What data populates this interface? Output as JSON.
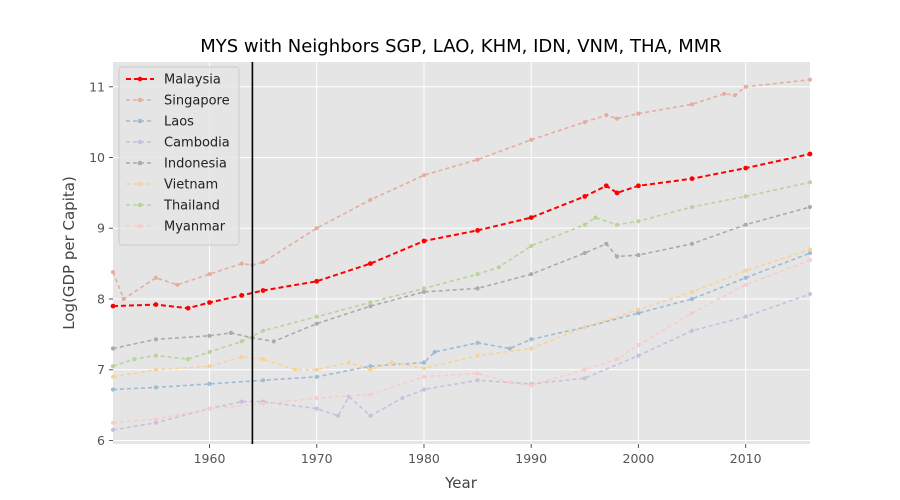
{
  "chart_data": {
    "type": "line",
    "title": "MYS with Neighbors SGP, LAO, KHM, IDN, VNM, THA, MMR",
    "xlabel": "Year",
    "ylabel": "Log(GDP per Capita)",
    "xlim": [
      1951,
      2016
    ],
    "ylim": [
      5.95,
      11.35
    ],
    "xticks": [
      1960,
      1970,
      1980,
      1990,
      2000,
      2010
    ],
    "yticks": [
      6,
      7,
      8,
      9,
      10,
      11
    ],
    "grid": true,
    "legend_position": "top-left",
    "reference_line": {
      "orientation": "vertical",
      "x": 1964,
      "color": "#000000"
    },
    "series": [
      {
        "name": "Malaysia",
        "color": "#ff0000",
        "emphasis": true,
        "points": [
          [
            1951,
            7.9
          ],
          [
            1955,
            7.92
          ],
          [
            1958,
            7.87
          ],
          [
            1960,
            7.95
          ],
          [
            1963,
            8.05
          ],
          [
            1965,
            8.12
          ],
          [
            1970,
            8.25
          ],
          [
            1975,
            8.5
          ],
          [
            1980,
            8.82
          ],
          [
            1985,
            8.97
          ],
          [
            1990,
            9.15
          ],
          [
            1995,
            9.45
          ],
          [
            1997,
            9.6
          ],
          [
            1998,
            9.5
          ],
          [
            2000,
            9.6
          ],
          [
            2005,
            9.7
          ],
          [
            2010,
            9.85
          ],
          [
            2016,
            10.05
          ]
        ]
      },
      {
        "name": "Singapore",
        "color": "#e5ad9d",
        "emphasis": false,
        "points": [
          [
            1951,
            8.38
          ],
          [
            1952,
            8.0
          ],
          [
            1955,
            8.3
          ],
          [
            1957,
            8.2
          ],
          [
            1960,
            8.35
          ],
          [
            1963,
            8.5
          ],
          [
            1964,
            8.48
          ],
          [
            1965,
            8.52
          ],
          [
            1970,
            9.0
          ],
          [
            1975,
            9.4
          ],
          [
            1980,
            9.75
          ],
          [
            1985,
            9.97
          ],
          [
            1990,
            10.25
          ],
          [
            1995,
            10.5
          ],
          [
            1997,
            10.6
          ],
          [
            1998,
            10.55
          ],
          [
            2000,
            10.62
          ],
          [
            2005,
            10.75
          ],
          [
            2008,
            10.9
          ],
          [
            2009,
            10.88
          ],
          [
            2010,
            11.0
          ],
          [
            2016,
            11.1
          ]
        ]
      },
      {
        "name": "Laos",
        "color": "#9dbbd3",
        "emphasis": false,
        "points": [
          [
            1951,
            6.72
          ],
          [
            1955,
            6.75
          ],
          [
            1960,
            6.8
          ],
          [
            1965,
            6.85
          ],
          [
            1970,
            6.9
          ],
          [
            1975,
            7.05
          ],
          [
            1980,
            7.1
          ],
          [
            1981,
            7.25
          ],
          [
            1985,
            7.38
          ],
          [
            1988,
            7.3
          ],
          [
            1990,
            7.43
          ],
          [
            1995,
            7.6
          ],
          [
            2000,
            7.8
          ],
          [
            2005,
            8.0
          ],
          [
            2010,
            8.3
          ],
          [
            2016,
            8.65
          ]
        ]
      },
      {
        "name": "Cambodia",
        "color": "#c8c0df",
        "emphasis": false,
        "points": [
          [
            1951,
            6.15
          ],
          [
            1955,
            6.25
          ],
          [
            1960,
            6.45
          ],
          [
            1963,
            6.55
          ],
          [
            1965,
            6.55
          ],
          [
            1970,
            6.45
          ],
          [
            1972,
            6.35
          ],
          [
            1973,
            6.62
          ],
          [
            1975,
            6.35
          ],
          [
            1978,
            6.6
          ],
          [
            1980,
            6.72
          ],
          [
            1985,
            6.85
          ],
          [
            1990,
            6.8
          ],
          [
            1995,
            6.88
          ],
          [
            2000,
            7.2
          ],
          [
            2005,
            7.55
          ],
          [
            2010,
            7.75
          ],
          [
            2016,
            8.07
          ]
        ]
      },
      {
        "name": "Indonesia",
        "color": "#aaaaaa",
        "emphasis": false,
        "points": [
          [
            1951,
            7.3
          ],
          [
            1955,
            7.43
          ],
          [
            1960,
            7.48
          ],
          [
            1962,
            7.52
          ],
          [
            1964,
            7.45
          ],
          [
            1966,
            7.4
          ],
          [
            1970,
            7.65
          ],
          [
            1975,
            7.9
          ],
          [
            1980,
            8.1
          ],
          [
            1985,
            8.15
          ],
          [
            1990,
            8.35
          ],
          [
            1995,
            8.65
          ],
          [
            1997,
            8.78
          ],
          [
            1998,
            8.6
          ],
          [
            2000,
            8.62
          ],
          [
            2005,
            8.78
          ],
          [
            2010,
            9.05
          ],
          [
            2016,
            9.3
          ]
        ]
      },
      {
        "name": "Vietnam",
        "color": "#f5d49a",
        "emphasis": false,
        "points": [
          [
            1951,
            6.9
          ],
          [
            1955,
            7.0
          ],
          [
            1960,
            7.05
          ],
          [
            1963,
            7.18
          ],
          [
            1965,
            7.15
          ],
          [
            1968,
            7.0
          ],
          [
            1970,
            7.0
          ],
          [
            1973,
            7.1
          ],
          [
            1975,
            7.0
          ],
          [
            1977,
            7.1
          ],
          [
            1980,
            7.02
          ],
          [
            1985,
            7.2
          ],
          [
            1990,
            7.3
          ],
          [
            1995,
            7.6
          ],
          [
            2000,
            7.85
          ],
          [
            2005,
            8.1
          ],
          [
            2010,
            8.4
          ],
          [
            2016,
            8.7
          ]
        ]
      },
      {
        "name": "Thailand",
        "color": "#b9d39a",
        "emphasis": false,
        "points": [
          [
            1951,
            7.05
          ],
          [
            1953,
            7.15
          ],
          [
            1955,
            7.2
          ],
          [
            1958,
            7.15
          ],
          [
            1960,
            7.25
          ],
          [
            1963,
            7.4
          ],
          [
            1965,
            7.55
          ],
          [
            1970,
            7.75
          ],
          [
            1975,
            7.95
          ],
          [
            1980,
            8.15
          ],
          [
            1985,
            8.35
          ],
          [
            1987,
            8.45
          ],
          [
            1990,
            8.75
          ],
          [
            1995,
            9.05
          ],
          [
            1996,
            9.15
          ],
          [
            1998,
            9.05
          ],
          [
            2000,
            9.1
          ],
          [
            2005,
            9.3
          ],
          [
            2010,
            9.45
          ],
          [
            2016,
            9.65
          ]
        ]
      },
      {
        "name": "Myanmar",
        "color": "#f7cccc",
        "emphasis": false,
        "points": [
          [
            1951,
            6.25
          ],
          [
            1955,
            6.3
          ],
          [
            1960,
            6.45
          ],
          [
            1965,
            6.52
          ],
          [
            1970,
            6.6
          ],
          [
            1975,
            6.65
          ],
          [
            1980,
            6.9
          ],
          [
            1985,
            6.95
          ],
          [
            1988,
            6.82
          ],
          [
            1990,
            6.78
          ],
          [
            1995,
            7.0
          ],
          [
            1998,
            7.15
          ],
          [
            2000,
            7.35
          ],
          [
            2005,
            7.8
          ],
          [
            2010,
            8.2
          ],
          [
            2016,
            8.55
          ]
        ]
      }
    ]
  }
}
